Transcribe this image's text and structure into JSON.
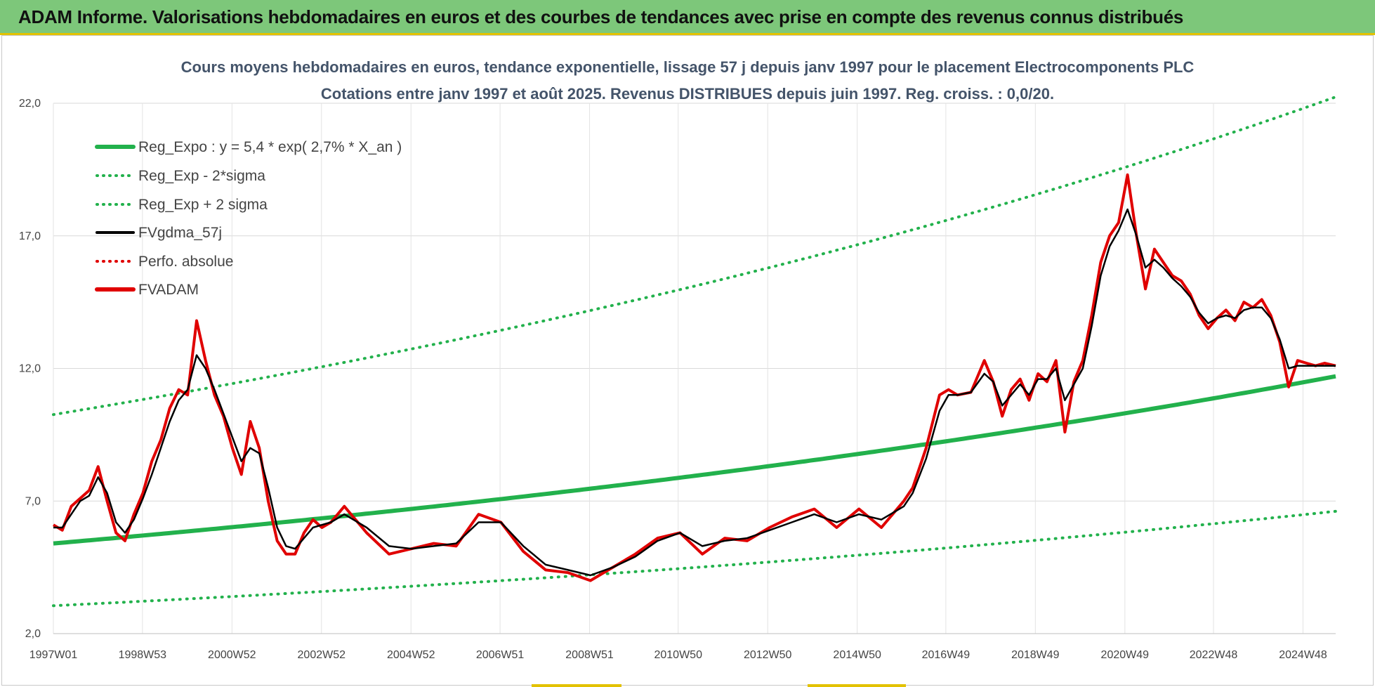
{
  "banner": {
    "title": "ADAM Informe. Valorisations hebdomadaires en euros et des courbes de tendances avec prise en compte des revenus connus distribués",
    "color": "#7dc77a"
  },
  "chart_data": {
    "type": "line",
    "title": "Cours moyens hebdomadaires en euros, tendance exponentielle, lissage 57 j depuis janv 1997  pour le placement Electrocomponents PLC",
    "subtitle": "Cotations entre janv 1997 et août 2025.  Revenus DISTRIBUES depuis juin 1997.  Reg. croiss. : 0,0/20.",
    "xlabel": "",
    "ylabel": "",
    "ylim": [
      2.0,
      22.0
    ],
    "xlim": [
      1997.0,
      2025.65
    ],
    "y_ticks": [
      "22,0",
      "17,0",
      "12,0",
      "7,0",
      "2,0"
    ],
    "x_ticks": [
      {
        "label": "1997W01",
        "year": 1997.0
      },
      {
        "label": "1998W53",
        "year": 1998.99
      },
      {
        "label": "2000W52",
        "year": 2000.99
      },
      {
        "label": "2002W52",
        "year": 2002.99
      },
      {
        "label": "2004W52",
        "year": 2004.99
      },
      {
        "label": "2006W51",
        "year": 2006.98
      },
      {
        "label": "2008W51",
        "year": 2008.98
      },
      {
        "label": "2010W50",
        "year": 2010.96
      },
      {
        "label": "2012W50",
        "year": 2012.96
      },
      {
        "label": "2014W50",
        "year": 2014.96
      },
      {
        "label": "2016W49",
        "year": 2016.94
      },
      {
        "label": "2018W49",
        "year": 2018.94
      },
      {
        "label": "2020W49",
        "year": 2020.94
      },
      {
        "label": "2022W48",
        "year": 2022.92
      },
      {
        "label": "2024W48",
        "year": 2024.92
      }
    ],
    "grid": true,
    "legend_position": "top-left",
    "regression": {
      "a": 5.4,
      "rate": 0.027,
      "sigma_factor_low": 0.565,
      "sigma_factor_high": 1.9
    },
    "series": [
      {
        "name": "Reg_Expo : y = 5,4 * exp( 2,7% *  X_an )",
        "color": "#22b14c",
        "style": "solid-thick"
      },
      {
        "name": "Reg_Exp - 2*sigma",
        "color": "#22b14c",
        "style": "dotted"
      },
      {
        "name": "Reg_Exp + 2 sigma",
        "color": "#22b14c",
        "style": "dotted"
      },
      {
        "name": "FVgdma_57j",
        "color": "#000000",
        "style": "solid"
      },
      {
        "name": "Perfo. absolue",
        "color": "#e00000",
        "style": "dotted"
      },
      {
        "name": "FVADAM",
        "color": "#e00000",
        "style": "solid-thick"
      }
    ],
    "price_x": [
      1997.0,
      1997.2,
      1997.4,
      1997.6,
      1997.8,
      1998.0,
      1998.2,
      1998.4,
      1998.6,
      1998.8,
      1999.0,
      1999.2,
      1999.4,
      1999.6,
      1999.8,
      2000.0,
      2000.2,
      2000.4,
      2000.6,
      2000.8,
      2001.0,
      2001.2,
      2001.4,
      2001.6,
      2001.8,
      2002.0,
      2002.2,
      2002.4,
      2002.6,
      2002.8,
      2003.0,
      2003.2,
      2003.5,
      2004.0,
      2004.5,
      2005.0,
      2005.5,
      2006.0,
      2006.5,
      2007.0,
      2007.5,
      2008.0,
      2008.5,
      2009.0,
      2009.5,
      2010.0,
      2010.5,
      2011.0,
      2011.5,
      2012.0,
      2012.5,
      2013.0,
      2013.5,
      2014.0,
      2014.5,
      2015.0,
      2015.5,
      2016.0,
      2016.2,
      2016.5,
      2016.8,
      2017.0,
      2017.2,
      2017.5,
      2017.8,
      2018.0,
      2018.2,
      2018.4,
      2018.6,
      2018.8,
      2019.0,
      2019.2,
      2019.4,
      2019.6,
      2019.8,
      2020.0,
      2020.2,
      2020.4,
      2020.6,
      2020.8,
      2021.0,
      2021.2,
      2021.4,
      2021.6,
      2021.8,
      2022.0,
      2022.2,
      2022.4,
      2022.6,
      2022.8,
      2023.0,
      2023.2,
      2023.4,
      2023.6,
      2023.8,
      2024.0,
      2024.2,
      2024.4,
      2024.6,
      2024.8,
      2025.0,
      2025.2,
      2025.4,
      2025.65
    ],
    "fvadam_values": [
      6.1,
      5.9,
      6.8,
      7.1,
      7.4,
      8.3,
      7.0,
      5.8,
      5.5,
      6.5,
      7.3,
      8.5,
      9.3,
      10.5,
      11.2,
      11.0,
      13.8,
      12.3,
      11.0,
      10.2,
      9.0,
      8.0,
      10.0,
      9.0,
      7.0,
      5.5,
      5.0,
      5.0,
      5.8,
      6.3,
      6.0,
      6.2,
      6.8,
      5.8,
      5.0,
      5.2,
      5.4,
      5.3,
      6.5,
      6.2,
      5.1,
      4.4,
      4.3,
      4.0,
      4.5,
      5.0,
      5.6,
      5.8,
      5.0,
      5.6,
      5.5,
      6.0,
      6.4,
      6.7,
      6.0,
      6.7,
      6.0,
      7.0,
      7.5,
      9.0,
      11.0,
      11.2,
      11.0,
      11.1,
      12.3,
      11.5,
      10.2,
      11.2,
      11.6,
      10.8,
      11.8,
      11.5,
      12.3,
      9.6,
      11.5,
      12.3,
      14.0,
      16.0,
      17.0,
      17.5,
      19.3,
      17.0,
      15.0,
      16.5,
      16.0,
      15.5,
      15.3,
      14.8,
      14.0,
      13.5,
      13.9,
      14.2,
      13.8,
      14.5,
      14.3,
      14.6,
      14.0,
      13.0,
      11.3,
      12.3,
      12.2,
      12.1,
      12.2,
      12.1
    ],
    "fvgdma_values": [
      6.0,
      6.0,
      6.5,
      7.0,
      7.2,
      7.9,
      7.3,
      6.2,
      5.8,
      6.3,
      7.1,
      8.0,
      9.0,
      10.0,
      10.8,
      11.2,
      12.5,
      12.0,
      11.2,
      10.3,
      9.4,
      8.5,
      9.0,
      8.8,
      7.5,
      6.0,
      5.3,
      5.2,
      5.6,
      6.0,
      6.1,
      6.2,
      6.5,
      6.0,
      5.3,
      5.2,
      5.3,
      5.4,
      6.2,
      6.2,
      5.3,
      4.6,
      4.4,
      4.2,
      4.5,
      4.9,
      5.5,
      5.8,
      5.3,
      5.5,
      5.6,
      5.9,
      6.2,
      6.5,
      6.2,
      6.5,
      6.3,
      6.8,
      7.3,
      8.6,
      10.4,
      11.0,
      11.0,
      11.1,
      11.8,
      11.5,
      10.6,
      11.0,
      11.4,
      11.0,
      11.6,
      11.6,
      12.0,
      10.8,
      11.4,
      12.0,
      13.6,
      15.5,
      16.6,
      17.2,
      18.0,
      17.0,
      15.8,
      16.1,
      15.8,
      15.4,
      15.1,
      14.7,
      14.1,
      13.7,
      13.9,
      14.0,
      13.9,
      14.2,
      14.3,
      14.3,
      13.9,
      13.1,
      12.0,
      12.1,
      12.1,
      12.1,
      12.1,
      12.1
    ]
  }
}
